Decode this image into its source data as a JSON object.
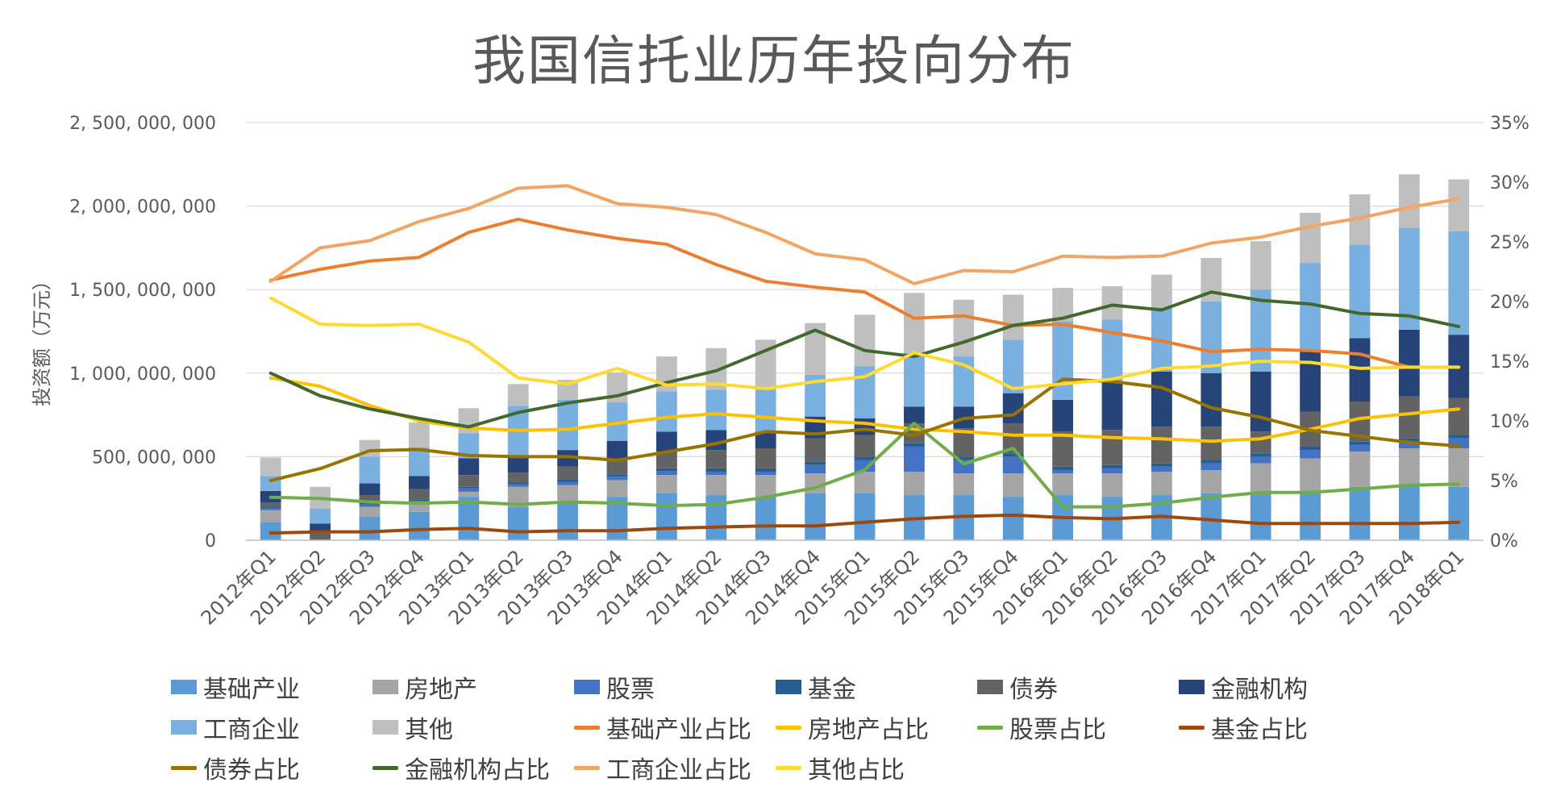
{
  "chart_data": {
    "type": "bar",
    "title": "我国信托业历年投向分布",
    "ylabel": "投资额（万元）",
    "ylim": [
      0,
      2500000000
    ],
    "y2lim": [
      0,
      35
    ],
    "y_ticks": [
      "0",
      "500, 000, 000",
      "1, 000, 000, 000",
      "1, 500, 000, 000",
      "2, 000, 000, 000",
      "2, 500, 000, 000"
    ],
    "y2_ticks": [
      "0%",
      "5%",
      "10%",
      "15%",
      "20%",
      "25%",
      "30%",
      "35%"
    ],
    "grid": true,
    "legend_position": "bottom",
    "categories": [
      "2012年Q1",
      "2012年Q2",
      "2012年Q3",
      "2012年Q4",
      "2013年Q1",
      "2013年Q2",
      "2013年Q3",
      "2013年Q4",
      "2014年Q1",
      "2014年Q2",
      "2014年Q3",
      "2014年Q4",
      "2015年Q1",
      "2015年Q2",
      "2015年Q3",
      "2015年Q4",
      "2016年Q1",
      "2016年Q2",
      "2016年Q3",
      "2016年Q4",
      "2017年Q1",
      "2017年Q2",
      "2017年Q3",
      "2017年Q4",
      "2018年Q1"
    ],
    "bar_series": [
      {
        "name": "基础产业",
        "color": "#5B9BD5",
        "values": [
          110000000,
          0,
          140000000,
          170000000,
          260000000,
          200000000,
          230000000,
          260000000,
          280000000,
          270000000,
          260000000,
          280000000,
          280000000,
          270000000,
          270000000,
          260000000,
          270000000,
          260000000,
          270000000,
          280000000,
          280000000,
          290000000,
          320000000,
          330000000,
          320000000
        ]
      },
      {
        "name": "房地产",
        "color": "#A5A5A5",
        "values": [
          70000000,
          0,
          60000000,
          50000000,
          30000000,
          120000000,
          100000000,
          100000000,
          110000000,
          120000000,
          130000000,
          120000000,
          130000000,
          140000000,
          130000000,
          140000000,
          130000000,
          140000000,
          140000000,
          140000000,
          180000000,
          200000000,
          210000000,
          220000000,
          230000000
        ]
      },
      {
        "name": "股票",
        "color": "#4472C4",
        "values": [
          10000000,
          0,
          15000000,
          15000000,
          20000000,
          15000000,
          20000000,
          20000000,
          25000000,
          20000000,
          20000000,
          50000000,
          70000000,
          150000000,
          80000000,
          100000000,
          20000000,
          30000000,
          30000000,
          40000000,
          40000000,
          50000000,
          40000000,
          40000000,
          60000000
        ]
      },
      {
        "name": "基金",
        "color": "#255E91",
        "values": [
          10000000,
          0,
          10000000,
          10000000,
          10000000,
          10000000,
          15000000,
          15000000,
          15000000,
          20000000,
          20000000,
          20000000,
          20000000,
          20000000,
          20000000,
          20000000,
          20000000,
          20000000,
          20000000,
          20000000,
          20000000,
          20000000,
          20000000,
          20000000,
          20000000
        ]
      },
      {
        "name": "债券",
        "color": "#636363",
        "values": [
          25000000,
          40000000,
          45000000,
          60000000,
          70000000,
          60000000,
          75000000,
          90000000,
          100000000,
          110000000,
          120000000,
          140000000,
          130000000,
          120000000,
          170000000,
          180000000,
          210000000,
          210000000,
          220000000,
          200000000,
          130000000,
          210000000,
          240000000,
          250000000,
          220000000
        ]
      },
      {
        "name": "金融机构",
        "color": "#264478",
        "values": [
          70000000,
          60000000,
          70000000,
          80000000,
          100000000,
          100000000,
          100000000,
          110000000,
          120000000,
          120000000,
          100000000,
          130000000,
          100000000,
          100000000,
          130000000,
          180000000,
          190000000,
          290000000,
          330000000,
          320000000,
          360000000,
          370000000,
          380000000,
          400000000,
          380000000
        ]
      },
      {
        "name": "工商企业",
        "color": "#7AB0E0",
        "values": [
          90000000,
          90000000,
          160000000,
          170000000,
          150000000,
          300000000,
          300000000,
          230000000,
          240000000,
          240000000,
          250000000,
          250000000,
          310000000,
          320000000,
          300000000,
          320000000,
          470000000,
          370000000,
          380000000,
          430000000,
          490000000,
          520000000,
          560000000,
          610000000,
          620000000
        ]
      },
      {
        "name": "其他",
        "color": "#BFBFBF",
        "values": [
          110000000,
          130000000,
          100000000,
          150000000,
          150000000,
          130000000,
          120000000,
          180000000,
          210000000,
          250000000,
          300000000,
          310000000,
          310000000,
          360000000,
          340000000,
          270000000,
          200000000,
          200000000,
          200000000,
          260000000,
          290000000,
          300000000,
          300000000,
          320000000,
          310000000
        ]
      }
    ],
    "line_series": [
      {
        "name": "基础产业占比",
        "color": "#ED7D31",
        "values": [
          21.8,
          22.7,
          23.4,
          23.7,
          25.8,
          26.9,
          26.0,
          25.3,
          24.8,
          23.1,
          21.7,
          21.2,
          20.8,
          18.6,
          18.8,
          18.0,
          18.1,
          17.4,
          16.7,
          15.8,
          16.0,
          15.9,
          15.6,
          14.5,
          14.5
        ]
      },
      {
        "name": "房地产占比",
        "color": "#FFC000",
        "values": [
          13.6,
          12.9,
          11.3,
          10.0,
          9.4,
          9.2,
          9.3,
          9.8,
          10.3,
          10.6,
          10.3,
          10.0,
          9.8,
          9.3,
          9.1,
          8.8,
          8.8,
          8.6,
          8.5,
          8.3,
          8.5,
          9.3,
          10.2,
          10.6,
          11.0
        ]
      },
      {
        "name": "股票占比",
        "color": "#70AD47",
        "values": [
          3.6,
          3.5,
          3.2,
          3.1,
          3.2,
          3.0,
          3.2,
          3.1,
          2.9,
          3.0,
          3.6,
          4.4,
          5.9,
          9.8,
          6.4,
          7.7,
          2.8,
          2.8,
          3.1,
          3.6,
          4.0,
          4.0,
          4.3,
          4.6,
          4.7
        ]
      },
      {
        "name": "基金占比",
        "color": "#9E480E",
        "values": [
          0.6,
          0.7,
          0.7,
          0.9,
          1.0,
          0.7,
          0.8,
          0.8,
          1.0,
          1.1,
          1.2,
          1.2,
          1.5,
          1.8,
          2.0,
          2.1,
          1.9,
          1.8,
          2.0,
          1.7,
          1.4,
          1.4,
          1.4,
          1.4,
          1.5
        ]
      },
      {
        "name": "债券占比",
        "color": "#997300",
        "values": [
          5.0,
          6.0,
          7.5,
          7.6,
          7.1,
          7.0,
          7.0,
          6.7,
          7.4,
          8.1,
          9.1,
          8.9,
          9.3,
          8.8,
          10.2,
          10.5,
          13.5,
          13.3,
          12.8,
          11.1,
          10.3,
          9.2,
          8.7,
          8.2,
          7.9
        ]
      },
      {
        "name": "金融机构占比",
        "color": "#43682B",
        "values": [
          14.0,
          12.1,
          11.0,
          10.2,
          9.5,
          10.7,
          11.5,
          12.1,
          13.2,
          14.2,
          15.9,
          17.6,
          15.9,
          15.4,
          16.6,
          18.0,
          18.6,
          19.7,
          19.3,
          20.8,
          20.1,
          19.8,
          19.0,
          18.8,
          17.9
        ]
      },
      {
        "name": "工商企业占比",
        "color": "#F4A462",
        "values": [
          21.7,
          24.5,
          25.1,
          26.7,
          27.8,
          29.5,
          29.7,
          28.2,
          27.9,
          27.3,
          25.8,
          24.0,
          23.5,
          21.5,
          22.6,
          22.5,
          23.8,
          23.7,
          23.8,
          24.9,
          25.4,
          26.3,
          27.0,
          27.9,
          28.6
        ]
      },
      {
        "name": "其他占比",
        "color": "#FFD92F",
        "values": [
          20.3,
          18.1,
          18.0,
          18.1,
          16.6,
          13.6,
          13.1,
          14.4,
          13.0,
          13.1,
          12.7,
          13.3,
          13.7,
          15.7,
          14.7,
          12.7,
          13.1,
          13.5,
          14.4,
          14.6,
          15.0,
          14.9,
          14.4,
          14.5,
          14.5
        ]
      }
    ]
  }
}
